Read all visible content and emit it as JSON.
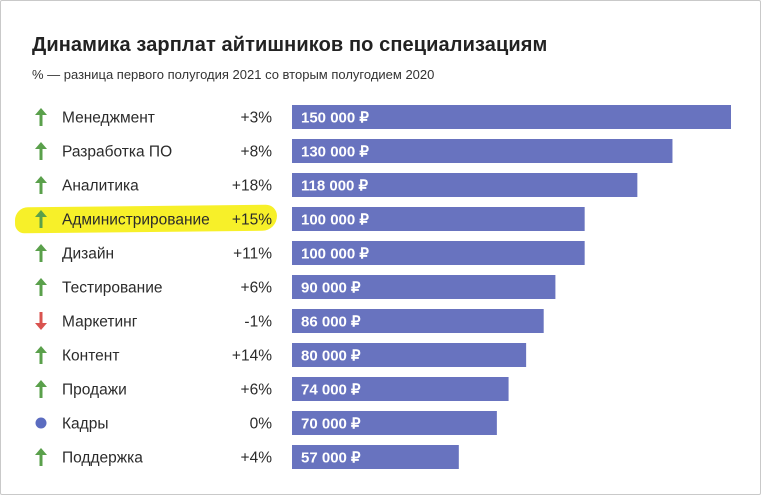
{
  "title": "Динамика зарплат айтишников по специализациям",
  "subtitle": "% — разница первого полугодия 2021 со вторым полугодием 2020",
  "colors": {
    "bar": "#6873bf",
    "up": "#5aa04b",
    "down": "#d9534f",
    "neutral": "#5b6cc0",
    "highlight": "#f7ef1e"
  },
  "chart_data": {
    "type": "bar",
    "orientation": "horizontal",
    "title": "Динамика зарплат айтишников по специализациям",
    "subtitle": "% — разница первого полугодия 2021 со вторым полугодием 2020",
    "categories": [
      "Менеджмент",
      "Разработка ПО",
      "Аналитика",
      "Администрирование",
      "Дизайн",
      "Тестирование",
      "Маркетинг",
      "Контент",
      "Продажи",
      "Кадры",
      "Поддержка"
    ],
    "values": [
      150000,
      130000,
      118000,
      100000,
      100000,
      90000,
      86000,
      80000,
      74000,
      70000,
      57000
    ],
    "value_labels": [
      "150 000 ₽",
      "130 000 ₽",
      "118 000 ₽",
      "100 000 ₽",
      "100 000 ₽",
      "90 000 ₽",
      "86 000 ₽",
      "80 000 ₽",
      "74 000 ₽",
      "70 000 ₽",
      "57 000 ₽"
    ],
    "changes": [
      "+3%",
      "+8%",
      "+18%",
      "+15%",
      "+11%",
      "+6%",
      "-1%",
      "+14%",
      "+6%",
      "0%",
      "+4%"
    ],
    "trend": [
      "up",
      "up",
      "up",
      "up",
      "up",
      "up",
      "down",
      "up",
      "up",
      "neutral",
      "up"
    ],
    "highlighted_category": "Администрирование",
    "xlim": [
      0,
      150000
    ],
    "grid": false,
    "legend": "none"
  }
}
